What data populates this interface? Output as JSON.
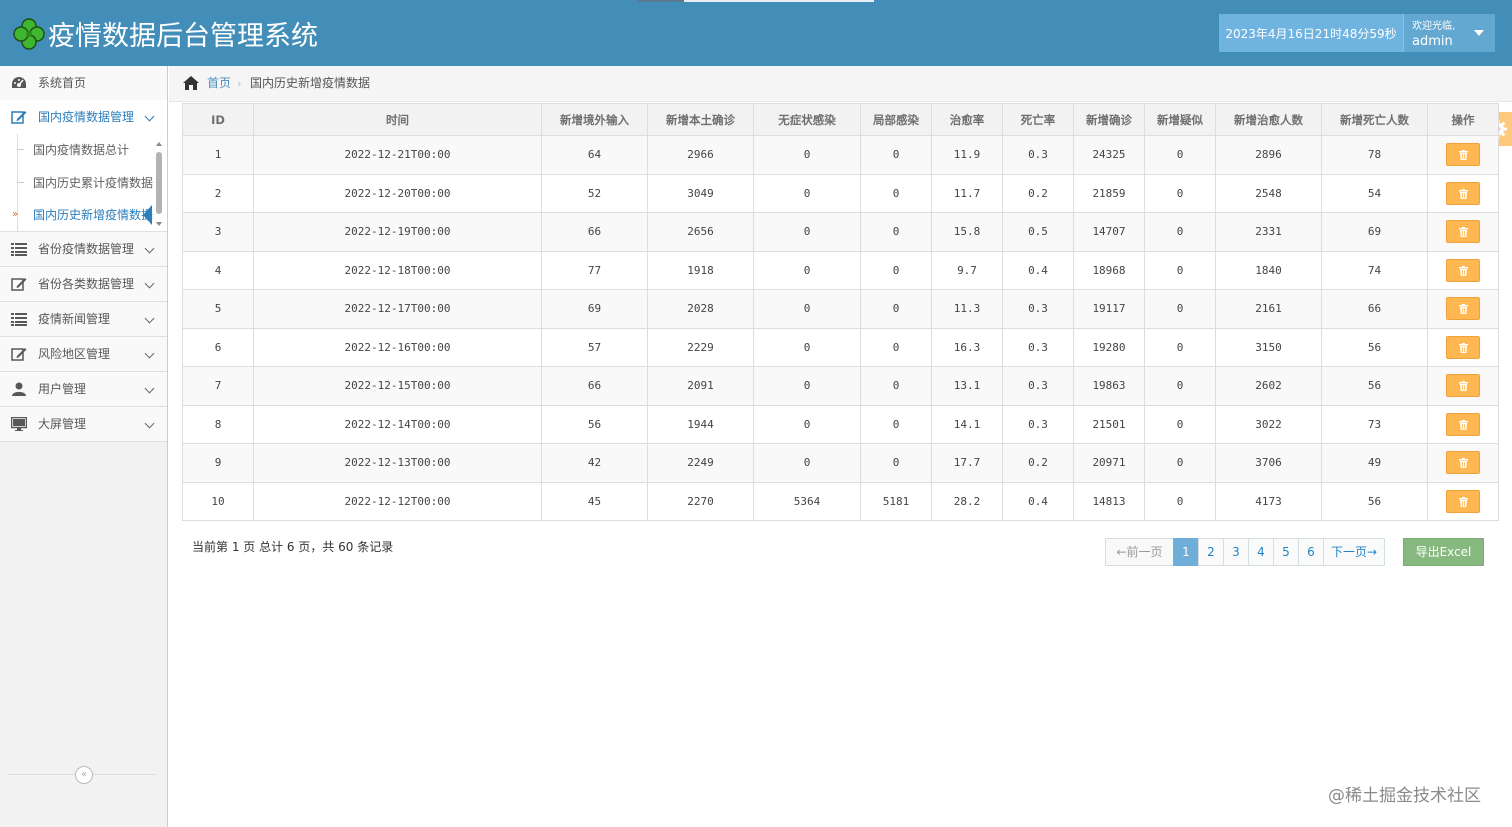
{
  "header": {
    "title": "疫情数据后台管理系统",
    "datetime": "2023年4月16日21时48分59秒",
    "welcome": "欢迎光临,",
    "username": "admin",
    "colors": {
      "bar": "#438eb9",
      "datetime_box": "#6fb3e0",
      "user_box": "#62a8d1"
    }
  },
  "sidebar": {
    "items": [
      {
        "label": "系统首页",
        "icon": "dashboard-icon"
      },
      {
        "label": "国内疫情数据管理",
        "icon": "edit-icon",
        "active": true
      },
      {
        "label": "省份疫情数据管理",
        "icon": "list-icon"
      },
      {
        "label": "省份各类数据管理",
        "icon": "edit-icon"
      },
      {
        "label": "疫情新闻管理",
        "icon": "list-icon"
      },
      {
        "label": "风险地区管理",
        "icon": "edit-icon"
      },
      {
        "label": "用户管理",
        "icon": "user-icon"
      },
      {
        "label": "大屏管理",
        "icon": "desktop-icon"
      }
    ],
    "submenu": [
      {
        "label": "国内疫情数据总计"
      },
      {
        "label": "国内历史累计疫情数据"
      },
      {
        "label": "国内历史新增疫情数据",
        "active": true
      }
    ],
    "collapse_glyph": "«"
  },
  "breadcrumb": {
    "home": "首页",
    "separator": "›",
    "current": "国内历史新增疫情数据"
  },
  "table": {
    "headers": [
      "ID",
      "时间",
      "新增境外输入",
      "新增本土确诊",
      "无症状感染",
      "局部感染",
      "治愈率",
      "死亡率",
      "新增确诊",
      "新增疑似",
      "新增治愈人数",
      "新增死亡人数",
      "操作"
    ],
    "rows": [
      [
        "1",
        "2022-12-21T00:00",
        "64",
        "2966",
        "0",
        "0",
        "11.9",
        "0.3",
        "24325",
        "0",
        "2896",
        "78"
      ],
      [
        "2",
        "2022-12-20T00:00",
        "52",
        "3049",
        "0",
        "0",
        "11.7",
        "0.2",
        "21859",
        "0",
        "2548",
        "54"
      ],
      [
        "3",
        "2022-12-19T00:00",
        "66",
        "2656",
        "0",
        "0",
        "15.8",
        "0.5",
        "14707",
        "0",
        "2331",
        "69"
      ],
      [
        "4",
        "2022-12-18T00:00",
        "77",
        "1918",
        "0",
        "0",
        "9.7",
        "0.4",
        "18968",
        "0",
        "1840",
        "74"
      ],
      [
        "5",
        "2022-12-17T00:00",
        "69",
        "2028",
        "0",
        "0",
        "11.3",
        "0.3",
        "19117",
        "0",
        "2161",
        "66"
      ],
      [
        "6",
        "2022-12-16T00:00",
        "57",
        "2229",
        "0",
        "0",
        "16.3",
        "0.3",
        "19280",
        "0",
        "3150",
        "56"
      ],
      [
        "7",
        "2022-12-15T00:00",
        "66",
        "2091",
        "0",
        "0",
        "13.1",
        "0.3",
        "19863",
        "0",
        "2602",
        "56"
      ],
      [
        "8",
        "2022-12-14T00:00",
        "56",
        "1944",
        "0",
        "0",
        "14.1",
        "0.3",
        "21501",
        "0",
        "3022",
        "73"
      ],
      [
        "9",
        "2022-12-13T00:00",
        "42",
        "2249",
        "0",
        "0",
        "17.7",
        "0.2",
        "20971",
        "0",
        "3706",
        "49"
      ],
      [
        "10",
        "2022-12-12T00:00",
        "45",
        "2270",
        "5364",
        "5181",
        "28.2",
        "0.4",
        "14813",
        "0",
        "4173",
        "56"
      ]
    ],
    "action_icon": "trash-icon",
    "action_color": "#ffb752"
  },
  "pager": {
    "info": "当前第 1 页 总计 6 页，共 60 条记录",
    "prev": "←前一页",
    "pages": [
      "1",
      "2",
      "3",
      "4",
      "5",
      "6"
    ],
    "current_page": "1",
    "next": "下一页→",
    "export": "导出Excel"
  },
  "watermark": "@稀土掘金技术社区"
}
